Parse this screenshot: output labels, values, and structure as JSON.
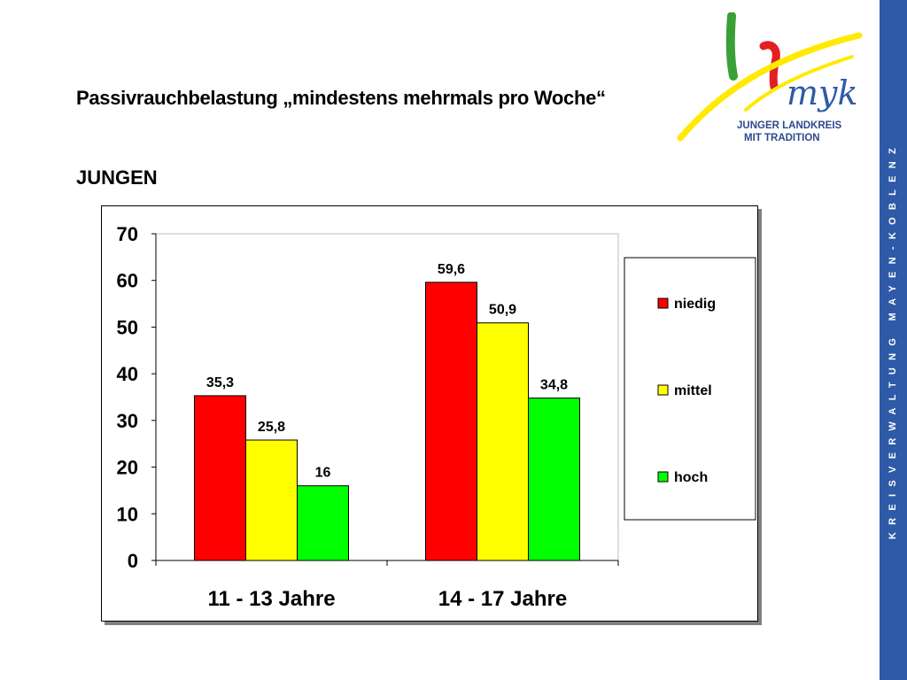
{
  "header": {
    "title": "Passivrauchbelastung „mindestens mehrmals pro Woche“",
    "subtitle": "JUNGEN"
  },
  "logo": {
    "text_line1": "JUNGER LANDKREIS",
    "text_line2": "MIT TRADITION",
    "mark": "myk"
  },
  "side_band": {
    "text": "KREISVERWALTUNG MAYEN-KOBLENZ",
    "color": "#2e5aa8"
  },
  "chart_data": {
    "type": "bar",
    "categories": [
      "11 - 13 Jahre",
      "14 - 17 Jahre"
    ],
    "series": [
      {
        "name": "niedig",
        "color": "#ff0000",
        "values": [
          35.3,
          59.6
        ],
        "labels": [
          "35,3",
          "59,6"
        ]
      },
      {
        "name": "mittel",
        "color": "#ffff00",
        "values": [
          25.8,
          50.9
        ],
        "labels": [
          "25,8",
          "50,9"
        ]
      },
      {
        "name": "hoch",
        "color": "#00ff00",
        "values": [
          16,
          34.8
        ],
        "labels": [
          "16",
          "34,8"
        ]
      }
    ],
    "ylim": [
      0,
      70
    ],
    "yticks": [
      0,
      10,
      20,
      30,
      40,
      50,
      60,
      70
    ],
    "grid": false,
    "legend": "right"
  }
}
